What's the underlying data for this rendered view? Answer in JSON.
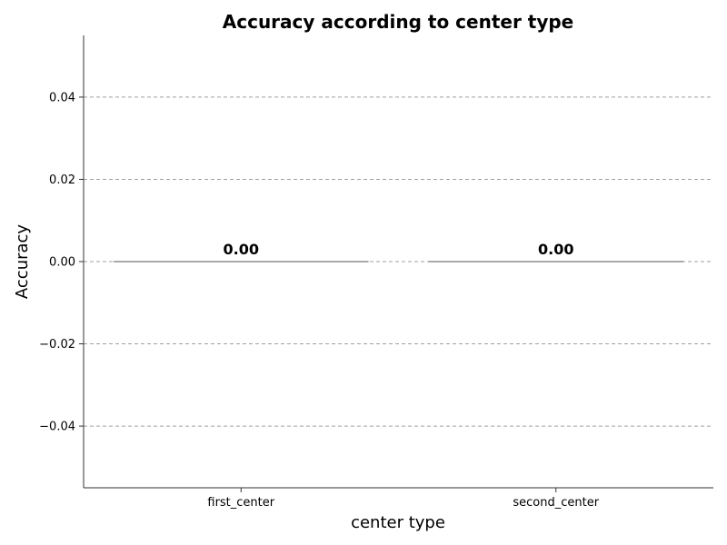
{
  "chart_data": {
    "type": "bar",
    "title": "Accuracy according to center type",
    "xlabel": "center type",
    "ylabel": "Accuracy",
    "categories": [
      "first_center",
      "second_center"
    ],
    "values": [
      0.0,
      0.0
    ],
    "data_labels": [
      "0.00",
      "0.00"
    ],
    "ylim": [
      -0.055,
      0.055
    ],
    "yticks": [
      -0.04,
      -0.02,
      0.0,
      0.02,
      0.04
    ],
    "ytick_labels": [
      "−0.04",
      "−0.02",
      "0.00",
      "0.02",
      "0.04"
    ],
    "grid": "y",
    "colors": {
      "bar_edge": "#555555",
      "grid": "#a0a0a0"
    }
  }
}
